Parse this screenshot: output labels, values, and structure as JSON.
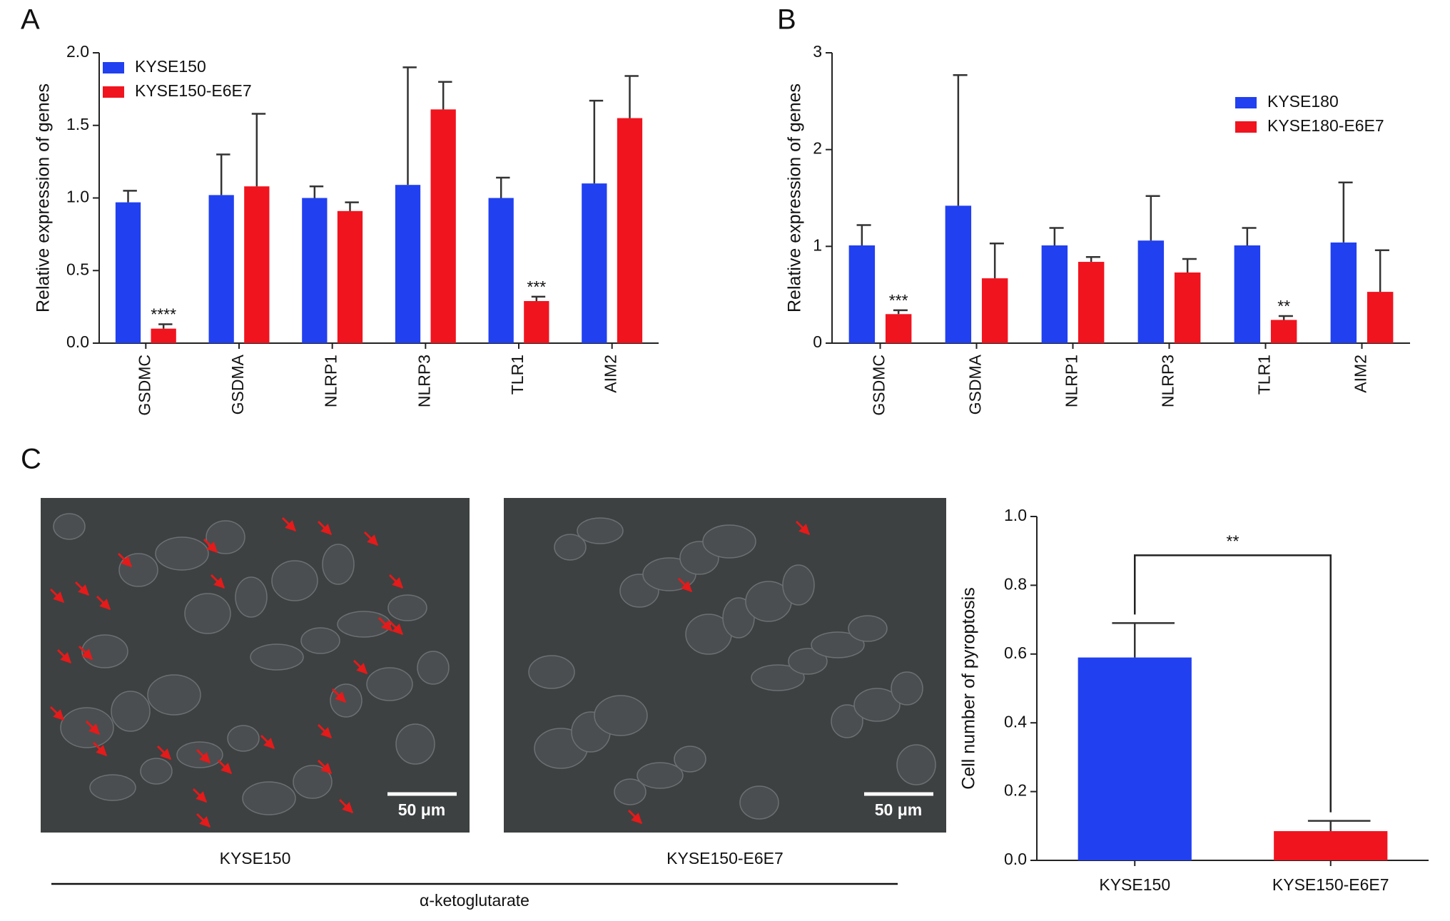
{
  "chart_data": [
    {
      "type": "bar",
      "panel": "A",
      "y_label": "Relative expression of genes",
      "categories": [
        "GSDMC",
        "GSDMA",
        "NLRP1",
        "NLRP3",
        "TLR1",
        "AIM2"
      ],
      "series": [
        {
          "name": "KYSE150",
          "color": "#2140f0",
          "values": [
            0.97,
            1.02,
            1.0,
            1.09,
            1.0,
            1.1
          ],
          "errors": [
            0.08,
            0.28,
            0.08,
            0.81,
            0.14,
            0.57
          ]
        },
        {
          "name": "KYSE150-E6E7",
          "color": "#f0141e",
          "values": [
            0.1,
            1.08,
            0.91,
            1.61,
            0.29,
            1.55
          ],
          "errors": [
            0.03,
            0.5,
            0.06,
            0.19,
            0.03,
            0.29
          ],
          "significance": [
            "****",
            null,
            null,
            null,
            "***",
            null
          ]
        }
      ],
      "ylim": [
        0,
        2
      ],
      "yticks": [
        {
          "value": 0,
          "label": "0.0"
        },
        0.5,
        {
          "value": 1,
          "label": "1.0"
        },
        1.5,
        {
          "value": 2,
          "label": "2.0"
        }
      ],
      "legend": "upper left"
    },
    {
      "type": "bar",
      "panel": "B",
      "y_label": "Relative expression of genes",
      "categories": [
        "GSDMC",
        "GSDMA",
        "NLRP1",
        "NLRP3",
        "TLR1",
        "AIM2"
      ],
      "series": [
        {
          "name": "KYSE180",
          "color": "#2140f0",
          "values": [
            1.01,
            1.42,
            1.01,
            1.06,
            1.01,
            1.04
          ],
          "errors": [
            0.21,
            1.35,
            0.18,
            0.46,
            0.18,
            0.62
          ]
        },
        {
          "name": "KYSE180-E6E7",
          "color": "#f0141e",
          "values": [
            0.3,
            0.67,
            0.84,
            0.73,
            0.24,
            0.53
          ],
          "errors": [
            0.04,
            0.36,
            0.05,
            0.14,
            0.04,
            0.43
          ],
          "significance": [
            "***",
            null,
            null,
            null,
            "**",
            null
          ]
        }
      ],
      "ylim": [
        0,
        3
      ],
      "yticks": [
        0,
        1,
        2,
        3
      ],
      "legend": "upper right"
    },
    {
      "type": "bar",
      "panel": "C",
      "y_label": "Cell number of pyroptosis",
      "categories": [
        "KYSE150",
        "KYSE150-E6E7"
      ],
      "values": [
        0.59,
        0.085
      ],
      "errors": [
        0.1,
        0.03
      ],
      "colors": [
        "#2140f0",
        "#f0141e"
      ],
      "comparison": "**",
      "ylim": [
        0,
        1
      ],
      "yticks": [
        {
          "value": 0,
          "label": "0.0"
        },
        0.2,
        0.4,
        0.6,
        0.8,
        {
          "value": 1,
          "label": "1.0"
        }
      ]
    }
  ],
  "micrographs": [
    {
      "label": "KYSE150",
      "scale_bar": "50 μm"
    },
    {
      "label": "KYSE150-E6E7",
      "scale_bar": "50 μm"
    }
  ],
  "treatment": "α-ketoglutarate"
}
